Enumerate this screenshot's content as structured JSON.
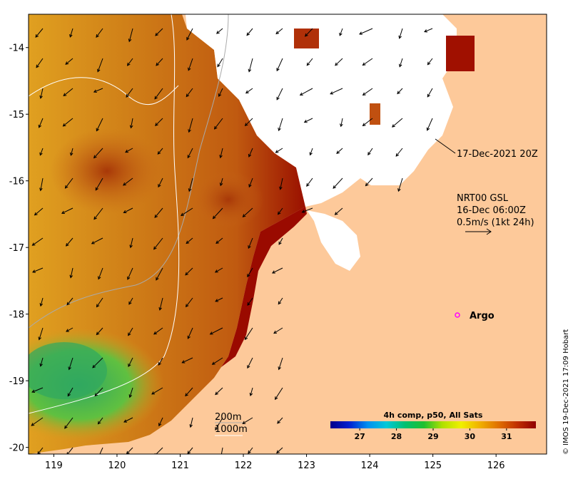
{
  "colors": {
    "land": "#fdc99a",
    "cloud": "#ffffff",
    "argo": "#ff00ff",
    "axis": "#000000",
    "sst_warm": "#c06010",
    "sst_hot": "#a00a00",
    "sst_cool": "#38b060",
    "isobath": "#bbbbbb",
    "isobath_deep": "#ffffff"
  },
  "map": {
    "lon_range": [
      118.6,
      126.8
    ],
    "lat_range": [
      -20.1,
      -13.5
    ],
    "x_ticks": [
      "119",
      "120",
      "121",
      "122",
      "123",
      "124",
      "125",
      "126"
    ],
    "y_ticks": [
      "-14",
      "-15",
      "-16",
      "-17",
      "-18",
      "-19",
      "-20"
    ]
  },
  "annotations": {
    "sst_time": "17-Dec-2021 20Z",
    "current_model": "NRT00 GSL",
    "current_time": "16-Dec 06:00Z",
    "scale_text": "0.5m/s (1kt 24h)",
    "isobath_200": "200m",
    "isobath_1000": "1000m",
    "argo_label": "Argo",
    "credit": "© IMOS 19-Dec-2021 17:09 Hobart"
  },
  "colorbar": {
    "title": "4h comp, p50, All Sats",
    "tick_labels": [
      "27",
      "28",
      "29",
      "30",
      "31"
    ],
    "range": [
      26.2,
      31.8
    ],
    "stops": [
      "#00008a",
      "#0020d0",
      "#0090f0",
      "#00c8d8",
      "#00c070",
      "#20c030",
      "#b0e000",
      "#f0f000",
      "#f0b000",
      "#e07000",
      "#c03000",
      "#900000"
    ]
  },
  "argo_float": {
    "lon": 125.25,
    "lat": -18.0
  }
}
